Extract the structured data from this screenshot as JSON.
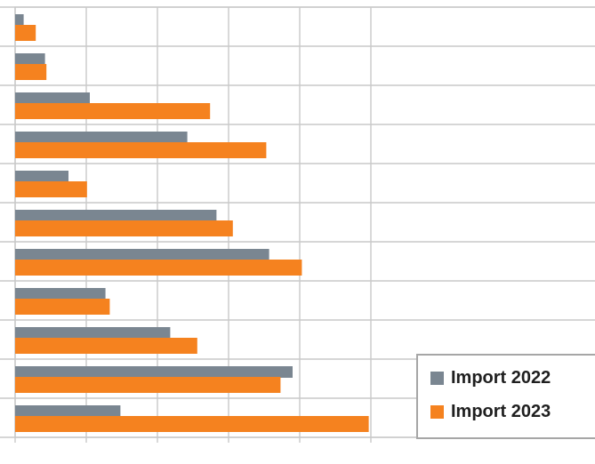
{
  "chart_data": {
    "type": "bar",
    "orientation": "horizontal",
    "categories": [
      "",
      "",
      "",
      "",
      "",
      "",
      "",
      "",
      "",
      "",
      ""
    ],
    "series": [
      {
        "name": "Import 2022",
        "color": "#7a8691",
        "values": [
          1.2,
          4.2,
          10.5,
          24.2,
          7.5,
          28.3,
          35.7,
          12.7,
          21.8,
          39.0,
          14.8
        ]
      },
      {
        "name": "Import 2023",
        "color": "#f5821f",
        "values": [
          2.9,
          4.4,
          27.4,
          35.3,
          10.1,
          30.6,
          40.3,
          13.3,
          25.6,
          37.3,
          49.7
        ]
      }
    ],
    "xlim": [
      0,
      50
    ],
    "grid": true,
    "legend": {
      "position": "bottom-right"
    }
  }
}
